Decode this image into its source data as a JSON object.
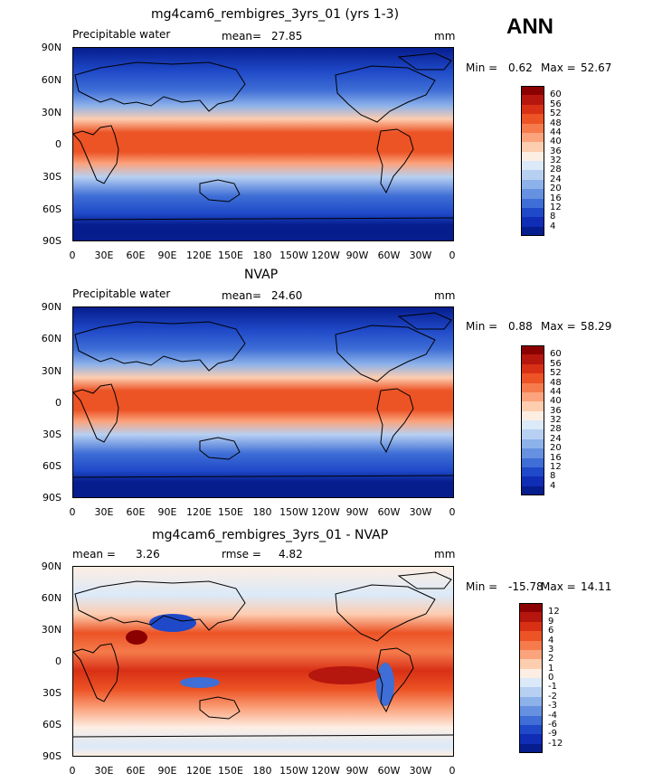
{
  "season": "ANN",
  "panels": [
    {
      "title": "mg4cam6_rembigres_3yrs_01 (yrs 1-3)",
      "left_label": "Precipitable water",
      "mean_label": "mean=",
      "mean_value": "27.85",
      "units": "mm",
      "min_label": "Min =",
      "min_value": "0.62",
      "max_label": "Max =",
      "max_value": "52.67"
    },
    {
      "title": "NVAP",
      "left_label": "Precipitable water",
      "mean_label": "mean=",
      "mean_value": "24.60",
      "units": "mm",
      "min_label": "Min =",
      "min_value": "0.88",
      "max_label": "Max =",
      "max_value": "58.29"
    },
    {
      "title": "mg4cam6_rembigres_3yrs_01 - NVAP",
      "mean_label": "mean =",
      "mean_value": "3.26",
      "rmse_label": "rmse =",
      "rmse_value": "4.82",
      "units": "mm",
      "min_label": "Min =",
      "min_value": "-15.78",
      "max_label": "Max =",
      "max_value": "14.11"
    }
  ],
  "lat_labels": [
    "90N",
    "60N",
    "30N",
    "0",
    "30S",
    "60S",
    "90S"
  ],
  "lon_labels": [
    "0",
    "30E",
    "60E",
    "90E",
    "120E",
    "150E",
    "180",
    "150W",
    "120W",
    "90W",
    "60W",
    "30W",
    "0"
  ],
  "colorbar_abs": {
    "labels": [
      "60",
      "56",
      "52",
      "48",
      "44",
      "40",
      "36",
      "32",
      "28",
      "24",
      "20",
      "16",
      "12",
      "8",
      "4"
    ],
    "colors": [
      "#8b0000",
      "#b5160d",
      "#d83015",
      "#ec5325",
      "#f57b4c",
      "#fba37c",
      "#fdcdb0",
      "#fdeee3",
      "#dbe9f8",
      "#b7d0f2",
      "#8db2ea",
      "#6691e0",
      "#3e6ed6",
      "#1f49c8",
      "#0f2db5",
      "#061d8e"
    ]
  },
  "colorbar_diff": {
    "labels": [
      "12",
      "9",
      "6",
      "4",
      "3",
      "2",
      "1",
      "0",
      "-1",
      "-2",
      "-3",
      "-4",
      "-6",
      "-9",
      "-12"
    ],
    "colors": [
      "#8b0000",
      "#b5160d",
      "#d83015",
      "#ec5325",
      "#f57b4c",
      "#fba37c",
      "#fdcdb0",
      "#fdeee3",
      "#dbe9f8",
      "#b7d0f2",
      "#8db2ea",
      "#6691e0",
      "#3e6ed6",
      "#1f49c8",
      "#0f2db5",
      "#061d8e"
    ]
  }
}
